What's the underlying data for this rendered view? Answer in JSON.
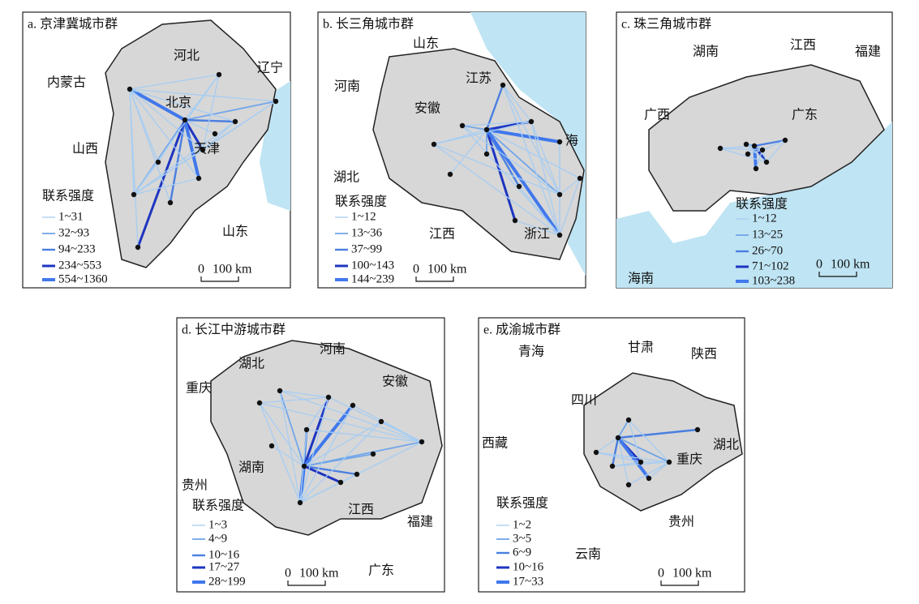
{
  "panels": [
    {
      "title": "a. 京津冀城市群",
      "places": [
        "河北",
        "辽宁",
        "内蒙古",
        "北京",
        "天津",
        "山西",
        "山东"
      ],
      "legend": {
        "title": "联系强度",
        "items": [
          "1~31",
          "32~93",
          "94~233",
          "234~553",
          "554~1360"
        ]
      },
      "scale": [
        "0",
        "100 km"
      ]
    },
    {
      "title": "b. 长三角城市群",
      "places": [
        "山东",
        "河南",
        "江苏",
        "安徽",
        "海",
        "湖北",
        "江西",
        "浙江"
      ],
      "legend": {
        "title": "联系强度",
        "items": [
          "1~12",
          "13~36",
          "37~99",
          "100~143",
          "144~239"
        ]
      },
      "scale": [
        "0",
        "100 km"
      ]
    },
    {
      "title": "c. 珠三角城市群",
      "places": [
        "湖南",
        "江西",
        "福建",
        "广西",
        "广东",
        "海南"
      ],
      "legend": {
        "title": "联系强度",
        "items": [
          "1~12",
          "13~25",
          "26~70",
          "71~102",
          "103~238"
        ]
      },
      "scale": [
        "0",
        "100 km"
      ]
    },
    {
      "title": "d. 长江中游城市群",
      "places": [
        "河南",
        "湖北",
        "重庆",
        "安徽",
        "湖南",
        "贵州",
        "江西",
        "福建",
        "广东"
      ],
      "legend": {
        "title": "联系强度",
        "items": [
          "1~3",
          "4~9",
          "10~16",
          "17~27",
          "28~199"
        ]
      },
      "scale": [
        "0",
        "100 km"
      ]
    },
    {
      "title": "e. 成渝城市群",
      "places": [
        "青海",
        "甘肃",
        "陕西",
        "四川",
        "西藏",
        "湖北",
        "重庆",
        "贵州",
        "云南"
      ],
      "legend": {
        "title": "联系强度",
        "items": [
          "1~2",
          "3~5",
          "6~9",
          "10~16",
          "17~33"
        ]
      },
      "scale": [
        "0",
        "100 km"
      ]
    }
  ]
}
